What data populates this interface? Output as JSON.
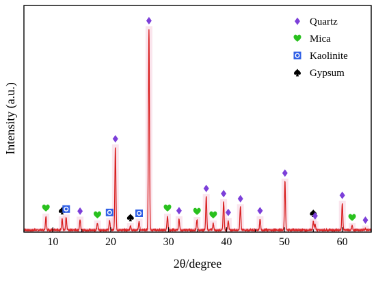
{
  "chart_data": {
    "type": "line",
    "xlabel": "2θ/degree",
    "ylabel": "Intensity (a.u.)",
    "xlim": [
      5,
      65
    ],
    "xticks": [
      10,
      20,
      30,
      40,
      50,
      60
    ],
    "tick_labels": [
      "10",
      "20",
      "30",
      "40",
      "50",
      "60"
    ],
    "y_scale": "arbitrary",
    "baseline": 1.0,
    "grid": false,
    "legend_position": "top-right",
    "line_color": "#d81e1e",
    "shadow_color": "#f4c6d6",
    "peaks": [
      {
        "x": 8.8,
        "y": 4.2,
        "phase": "mica"
      },
      {
        "x": 11.6,
        "y": 3.6,
        "phase": "gypsum"
      },
      {
        "x": 12.3,
        "y": 4.0,
        "phase": "kaolinite"
      },
      {
        "x": 14.7,
        "y": 3.5,
        "phase": "quartz"
      },
      {
        "x": 17.7,
        "y": 2.6,
        "phase": "mica"
      },
      {
        "x": 19.8,
        "y": 3.2,
        "phase": "kaolinite"
      },
      {
        "x": 20.8,
        "y": 20.4,
        "phase": "quartz"
      },
      {
        "x": 23.4,
        "y": 2.0,
        "phase": "gypsum"
      },
      {
        "x": 24.9,
        "y": 3.0,
        "phase": "kaolinite"
      },
      {
        "x": 26.6,
        "y": 48.0,
        "phase": "quartz"
      },
      {
        "x": 29.8,
        "y": 4.2,
        "phase": "mica"
      },
      {
        "x": 31.8,
        "y": 3.6,
        "phase": "quartz"
      },
      {
        "x": 34.9,
        "y": 3.4,
        "phase": "mica"
      },
      {
        "x": 36.5,
        "y": 8.8,
        "phase": "quartz"
      },
      {
        "x": 37.7,
        "y": 2.6,
        "phase": "mica"
      },
      {
        "x": 39.5,
        "y": 7.6,
        "phase": "quartz"
      },
      {
        "x": 40.3,
        "y": 3.2,
        "phase": "quartz"
      },
      {
        "x": 42.4,
        "y": 6.4,
        "phase": "quartz"
      },
      {
        "x": 45.8,
        "y": 3.6,
        "phase": "quartz"
      },
      {
        "x": 50.1,
        "y": 12.4,
        "phase": "quartz"
      },
      {
        "x": 55.0,
        "y": 3.0,
        "phase": "gypsum"
      },
      {
        "x": 55.3,
        "y": 2.4,
        "phase": "quartz"
      },
      {
        "x": 60.0,
        "y": 7.2,
        "phase": "quartz"
      },
      {
        "x": 61.7,
        "y": 2.0,
        "phase": "mica"
      },
      {
        "x": 64.0,
        "y": 1.4,
        "phase": "quartz"
      }
    ]
  },
  "legend": [
    {
      "key": "quartz",
      "label": "Quartz",
      "color": "#7c3fd9",
      "icon": "diamond-icon"
    },
    {
      "key": "mica",
      "label": "Mica",
      "color": "#29c11e",
      "icon": "heart-icon"
    },
    {
      "key": "kaolinite",
      "label": "Kaolinite",
      "color": "#2f5fe6",
      "icon": "circle-in-square-icon"
    },
    {
      "key": "gypsum",
      "label": "Gypsum",
      "color": "#000000",
      "icon": "spade-icon"
    }
  ]
}
